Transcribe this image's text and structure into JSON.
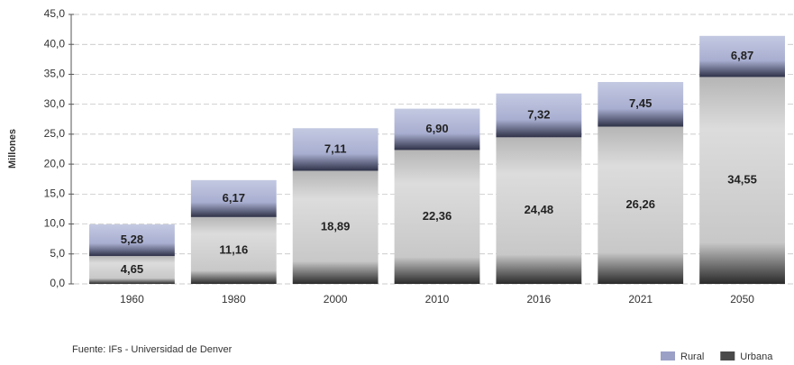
{
  "chart_data": {
    "type": "stacked_bar",
    "y_label": "Millones",
    "source": "Fuente: IFs - Universidad de Denver",
    "categories": [
      "1960",
      "1980",
      "2000",
      "2010",
      "2016",
      "2021",
      "2050"
    ],
    "series": [
      {
        "name": "Rural",
        "color": "#9aa0c6",
        "values": [
          5.28,
          6.17,
          7.11,
          6.9,
          7.32,
          7.45,
          6.87
        ],
        "value_labels": [
          "5,28",
          "6,17",
          "7,11",
          "6,90",
          "7,32",
          "7,45",
          "6,87"
        ]
      },
      {
        "name": "Urbana",
        "color": "#4a4a4a",
        "values": [
          4.65,
          11.16,
          18.89,
          22.36,
          24.48,
          26.26,
          34.55
        ],
        "value_labels": [
          "4,65",
          "11,16",
          "18,89",
          "22,36",
          "24,48",
          "26,26",
          "34,55"
        ]
      }
    ],
    "ylim": [
      0,
      45
    ],
    "yticks": [
      {
        "value": 0,
        "label": "0,0"
      },
      {
        "value": 5,
        "label": "5,0"
      },
      {
        "value": 10,
        "label": "10,0"
      },
      {
        "value": 15,
        "label": "15,0"
      },
      {
        "value": 20,
        "label": "20,0"
      },
      {
        "value": 25,
        "label": "25,0"
      },
      {
        "value": 30,
        "label": "30,0"
      },
      {
        "value": 35,
        "label": "35,0"
      },
      {
        "value": 40,
        "label": "40,0"
      },
      {
        "value": 45,
        "label": "45,0"
      }
    ],
    "grid": true,
    "legend": "bottom-right"
  }
}
